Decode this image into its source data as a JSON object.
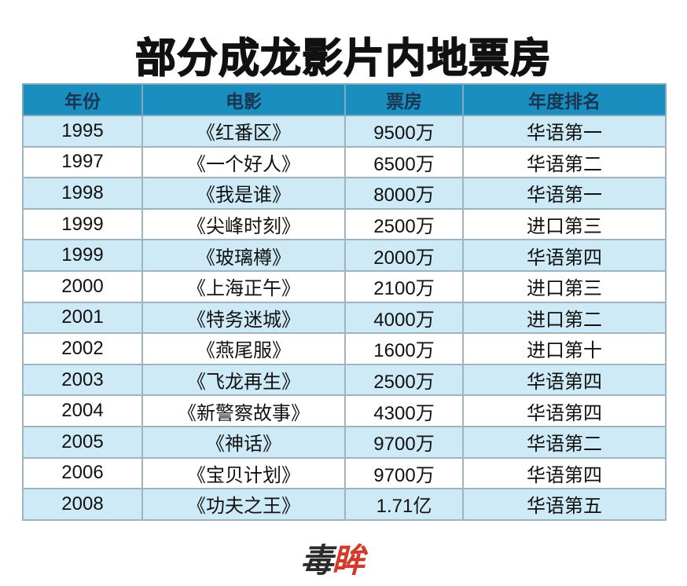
{
  "title": "部分成龙影片内地票房",
  "table": {
    "headers": [
      "年份",
      "电影",
      "票房",
      "年度排名"
    ],
    "rows": [
      [
        "1995",
        "《红番区》",
        "9500万",
        "华语第一"
      ],
      [
        "1997",
        "《一个好人》",
        "6500万",
        "华语第二"
      ],
      [
        "1998",
        "《我是谁》",
        "8000万",
        "华语第一"
      ],
      [
        "1999",
        "《尖峰时刻》",
        "2500万",
        "进口第三"
      ],
      [
        "1999",
        "《玻璃樽》",
        "2000万",
        "华语第四"
      ],
      [
        "2000",
        "《上海正午》",
        "2100万",
        "进口第三"
      ],
      [
        "2001",
        "《特务迷城》",
        "4000万",
        "进口第二"
      ],
      [
        "2002",
        "《燕尾服》",
        "1600万",
        "进口第十"
      ],
      [
        "2003",
        "《飞龙再生》",
        "2500万",
        "华语第四"
      ],
      [
        "2004",
        "《新警察故事》",
        "4300万",
        "华语第四"
      ],
      [
        "2005",
        "《神话》",
        "9700万",
        "华语第二"
      ],
      [
        "2006",
        "《宝贝计划》",
        "9700万",
        "华语第四"
      ],
      [
        "2008",
        "《功夫之王》",
        "1.71亿",
        "华语第五"
      ]
    ]
  },
  "logo": {
    "part1": "毒",
    "part2": "眸"
  },
  "colors": {
    "header": "#1b8ec0",
    "alt_row": "#cfeaf7",
    "logo_accent": "#d33a2c"
  }
}
